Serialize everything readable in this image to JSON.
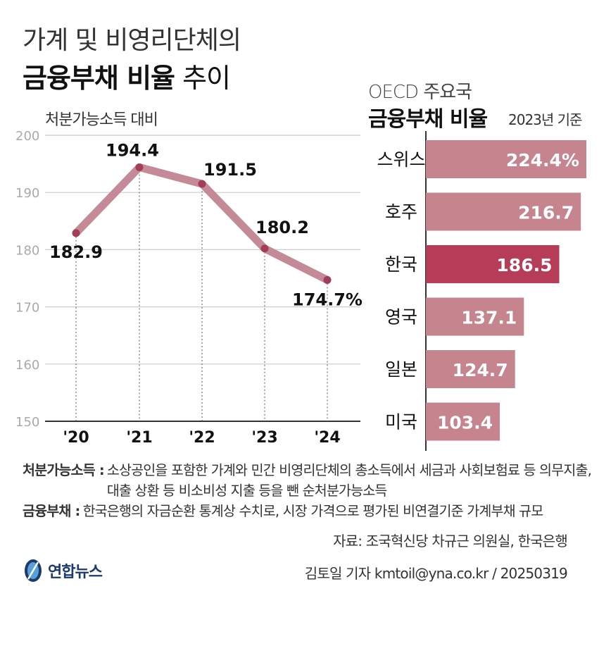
{
  "title": {
    "line1": "가계 및 비영리단체의",
    "line2_bold": "금융부채 비율",
    "line2_light": "추이"
  },
  "left_panel": {
    "subtitle": "처분가능소득 대비"
  },
  "right_panel": {
    "oecd_label": "OECD 주요국",
    "title": "금융부채 비율",
    "basis": "2023년 기준"
  },
  "chart_data": [
    {
      "type": "line",
      "title": "처분가능소득 대비",
      "categories": [
        "'20",
        "'21",
        "'22",
        "'23",
        "'24"
      ],
      "values": [
        182.9,
        194.4,
        191.5,
        180.2,
        174.7
      ],
      "value_labels": [
        "182.9",
        "194.4",
        "191.5",
        "180.2",
        "174.7%"
      ],
      "yticks": [
        "200",
        "190",
        "180",
        "170",
        "160",
        "150"
      ],
      "ylim": [
        150,
        200
      ],
      "grid": true
    },
    {
      "type": "bar",
      "orientation": "horizontal",
      "title": "금융부채 비율",
      "categories": [
        "스위스",
        "호주",
        "한국",
        "영국",
        "일본",
        "미국"
      ],
      "values": [
        224.4,
        216.7,
        186.5,
        137.1,
        124.7,
        103.4
      ],
      "value_labels": [
        "224.4%",
        "216.7",
        "186.5",
        "137.1",
        "124.7",
        "103.4"
      ],
      "highlight": "한국",
      "xlim": [
        0,
        224.4
      ]
    }
  ],
  "notes": [
    {
      "term": "처분가능소득 :",
      "text": "소상공인을 포함한 가계와 민간 비영리단체의 총소득에서 세금과 사회보험료 등 의무지출, 대출 상환 등 비소비성 지출 등을 뺀 순처분가능소득"
    },
    {
      "term": "금융부채 :",
      "text": "한국은행의 자금순환 통계상 수치로, 시장 가격으로 평가된 비연결기준 가계부채 규모"
    }
  ],
  "source": "자료: 조국혁신당 차규근 의원실, 한국은행",
  "credit": "김토일 기자 kmtoil@yna.co.kr / 20250319",
  "logo": {
    "text": "연합뉴스",
    "icon": "yonhap-logo-icon"
  },
  "colors": {
    "line": "#c58a98",
    "marker": "#a33d5a",
    "bar": "#c6848f",
    "bar_highlight": "#b63c58",
    "grid": "#cccccc"
  }
}
